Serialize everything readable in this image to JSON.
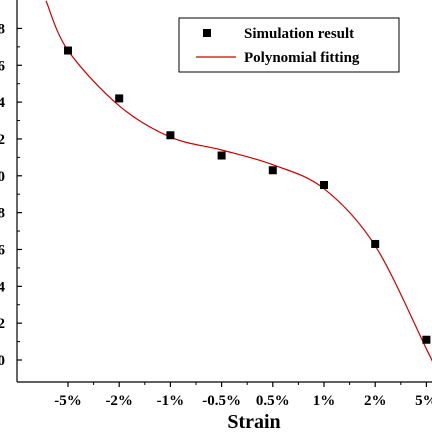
{
  "chart_data": {
    "type": "scatter",
    "categories": [
      "-5%",
      "-2%",
      "-1%",
      "-0.5%",
      "0.5%",
      "1%",
      "2%",
      "5%"
    ],
    "x": [
      -5,
      -2,
      -1,
      -0.5,
      0.5,
      1,
      2,
      5
    ],
    "xlabel": "Strain",
    "ylabel": "",
    "series": [
      {
        "name": "Simulation result",
        "kind": "scatter",
        "marker": "square",
        "color": "#000000",
        "values": [
          1.68,
          1.42,
          1.22,
          1.11,
          1.03,
          0.95,
          0.63,
          0.11
        ]
      },
      {
        "name": "Polynomial fitting",
        "kind": "line",
        "color": "#cc0000",
        "values": [
          1.68,
          1.38,
          1.21,
          1.14,
          1.06,
          0.93,
          0.62,
          0.06
        ]
      }
    ],
    "ylim": [
      0,
      1.9
    ],
    "legend_position": "top-right",
    "grid": false
  }
}
